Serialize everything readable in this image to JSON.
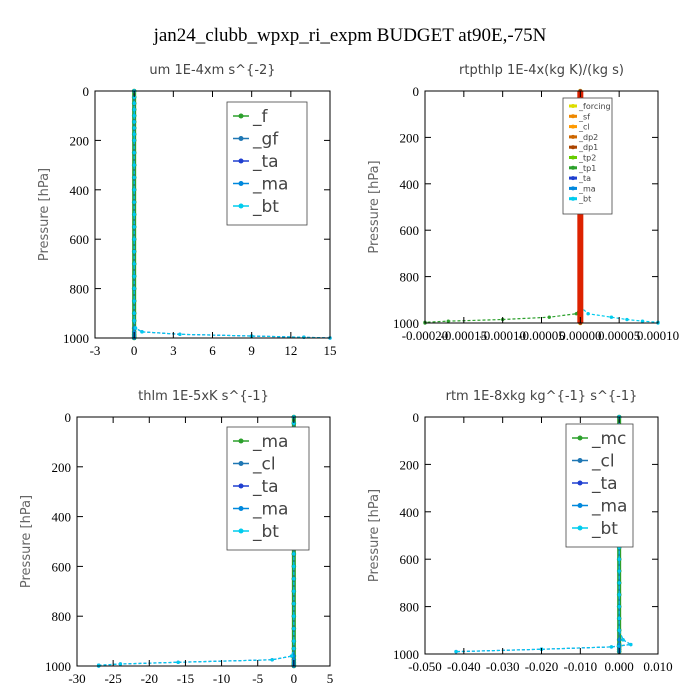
{
  "figure_title": "jan24_clubb_wpxp_ri_expm  BUDGET at90E,-75N",
  "chart_data": [
    {
      "type": "line",
      "title": "um   1E-4xm s^{-2}",
      "ylabel": "Pressure [hPa]",
      "xlim": [
        -3,
        15
      ],
      "ylim": [
        1000,
        0
      ],
      "xticks": [
        "-3",
        "0",
        "3",
        "6",
        "9",
        "12",
        "15"
      ],
      "xtick_values": [
        -3,
        0,
        3,
        6,
        9,
        12,
        15
      ],
      "yticks": [
        "0",
        "200",
        "400",
        "600",
        "800",
        "1000"
      ],
      "ytick_values": [
        0,
        200,
        400,
        600,
        800,
        1000
      ],
      "legend_position": "top-right",
      "legend_size": "large",
      "y": [
        0,
        25,
        50,
        75,
        100,
        125,
        150,
        175,
        200,
        250,
        300,
        350,
        400,
        450,
        500,
        550,
        600,
        650,
        700,
        750,
        800,
        850,
        900,
        930,
        960,
        975,
        985,
        992,
        997,
        1000
      ],
      "series": [
        {
          "name": "_f",
          "color": "#2ca02c",
          "values": [
            0,
            0,
            0,
            0,
            0,
            0,
            0,
            0,
            0,
            0,
            0,
            0,
            0,
            0,
            0,
            0,
            0,
            0,
            0,
            0,
            0,
            0,
            0,
            0,
            0,
            0,
            0,
            0,
            0,
            0
          ]
        },
        {
          "name": "_gf",
          "color": "#1f77b4",
          "values": [
            0,
            0,
            0,
            0,
            0,
            0,
            0,
            0,
            0,
            0,
            0,
            0,
            0,
            0,
            0,
            0,
            0,
            0,
            0,
            0,
            0,
            0,
            0,
            0,
            0,
            0,
            0,
            0,
            0,
            0
          ]
        },
        {
          "name": "_ta",
          "color": "#1f3fd0",
          "values": [
            0,
            0,
            0,
            0,
            0,
            0,
            0,
            0,
            0,
            0,
            0,
            0,
            0,
            0,
            0,
            0,
            0,
            0,
            0,
            0,
            0,
            0,
            0,
            0,
            0.1,
            0.6,
            3.5,
            9,
            13,
            15
          ]
        },
        {
          "name": "_ma",
          "color": "#0088dd",
          "values": [
            0,
            0,
            0,
            0,
            0,
            0,
            0,
            0,
            0,
            0,
            0,
            0,
            0,
            0,
            0,
            0,
            0,
            0,
            0,
            0,
            0,
            0,
            0,
            0,
            0,
            0,
            0,
            0,
            0,
            0
          ]
        },
        {
          "name": "_bt",
          "color": "#00ccee",
          "values": [
            0,
            0,
            0,
            0,
            0,
            0,
            0,
            0,
            0,
            0,
            0,
            0,
            0,
            0,
            0,
            0,
            0,
            0,
            0,
            0,
            0,
            0,
            0,
            0,
            0.1,
            0.6,
            3.5,
            9,
            13,
            15
          ]
        }
      ]
    },
    {
      "type": "line",
      "title": "rtpthlp   1E-4x(kg K)/(kg s)",
      "ylabel": "Pressure [hPa]",
      "xlim": [
        -0.0002,
        0.0001
      ],
      "ylim": [
        1000,
        0
      ],
      "xticks": [
        "-0.00020",
        "-0.00015",
        "-0.00010",
        "-0.00005",
        "0.00000",
        "0.00005",
        "0.00010"
      ],
      "xtick_values": [
        -0.0002,
        -0.00015,
        -0.0001,
        -5e-05,
        0,
        5e-05,
        0.0001
      ],
      "yticks": [
        "0",
        "200",
        "400",
        "600",
        "800",
        "1000"
      ],
      "ytick_values": [
        0,
        200,
        400,
        600,
        800,
        1000
      ],
      "legend_position": "top-right",
      "legend_size": "small",
      "y": [
        0,
        25,
        50,
        75,
        100,
        125,
        150,
        175,
        200,
        250,
        300,
        350,
        400,
        450,
        500,
        550,
        600,
        650,
        700,
        750,
        800,
        850,
        900,
        930,
        960,
        975,
        985,
        992,
        997,
        1000
      ],
      "series": [
        {
          "name": "_forcing",
          "color": "#dddd00",
          "values": [
            0,
            0,
            0,
            0,
            0,
            0,
            0,
            0,
            0,
            0,
            0,
            0,
            0,
            0,
            0,
            0,
            0,
            0,
            0,
            0,
            0,
            0,
            0,
            0,
            0,
            0,
            0,
            0,
            0,
            0
          ]
        },
        {
          "name": "_sf",
          "color": "#ee8800",
          "values": [
            0,
            0,
            0,
            0,
            0,
            0,
            0,
            0,
            0,
            0,
            0,
            0,
            0,
            0,
            0,
            0,
            0,
            0,
            0,
            0,
            0,
            0,
            0,
            0,
            0,
            0,
            0,
            0,
            0,
            0
          ]
        },
        {
          "name": "_cl",
          "color": "#ff9900",
          "values": [
            0,
            0,
            0,
            0,
            0,
            0,
            0,
            0,
            0,
            0,
            0,
            0,
            0,
            0,
            0,
            0,
            0,
            0,
            0,
            0,
            0,
            0,
            0,
            0,
            0,
            0,
            0,
            0,
            0,
            0
          ]
        },
        {
          "name": "_dp2",
          "color": "#cc6600",
          "values": [
            0,
            0,
            0,
            0,
            0,
            0,
            0,
            0,
            0,
            0,
            0,
            0,
            0,
            0,
            0,
            0,
            0,
            0,
            0,
            0,
            0,
            0,
            0,
            0,
            0,
            0,
            0,
            0,
            0,
            0
          ]
        },
        {
          "name": "_dp1",
          "color": "#aa4400",
          "values": [
            0,
            0,
            0,
            0,
            0,
            0,
            0,
            0,
            0,
            0,
            0,
            0,
            0,
            0,
            0,
            0,
            0,
            0,
            0,
            0,
            0,
            0,
            0,
            0,
            0,
            0,
            0,
            0,
            0,
            0
          ]
        },
        {
          "name": "_tp2",
          "color": "#66cc00",
          "values": [
            0,
            0,
            0,
            0,
            0,
            0,
            0,
            0,
            0,
            0,
            0,
            0,
            0,
            0,
            0,
            0,
            0,
            0,
            0,
            0,
            0,
            0,
            0,
            0,
            0,
            0,
            0,
            0,
            0,
            0
          ]
        },
        {
          "name": "_tp1",
          "color": "#2ca02c",
          "values": [
            0,
            0,
            0,
            0,
            0,
            0,
            0,
            0,
            0,
            0,
            0,
            0,
            0,
            0,
            0,
            0,
            0,
            0,
            0,
            0,
            0,
            0,
            0,
            0,
            -5e-06,
            -4e-05,
            -0.0001,
            -0.00017,
            -0.0002,
            -0.0002
          ]
        },
        {
          "name": "_ta",
          "color": "#1f3fd0",
          "values": [
            0,
            0,
            0,
            0,
            0,
            0,
            0,
            0,
            0,
            0,
            0,
            0,
            0,
            0,
            0,
            0,
            0,
            0,
            0,
            0,
            0,
            0,
            0,
            0,
            0,
            0,
            0,
            0,
            0,
            0
          ]
        },
        {
          "name": "_ma",
          "color": "#0088dd",
          "values": [
            0,
            0,
            0,
            0,
            0,
            0,
            0,
            0,
            0,
            0,
            0,
            0,
            0,
            0,
            0,
            0,
            0,
            0,
            0,
            0,
            0,
            0,
            0,
            0,
            0,
            0,
            0,
            0,
            0,
            0
          ]
        },
        {
          "name": "_bt",
          "color": "#00ccee",
          "values": [
            0,
            0,
            0,
            0,
            0,
            0,
            0,
            0,
            0,
            0,
            0,
            0,
            0,
            0,
            0,
            0,
            0,
            0,
            0,
            0,
            0,
            0,
            0,
            0,
            1e-05,
            4e-05,
            6e-05,
            8e-05,
            0.0001,
            0.0001
          ]
        },
        {
          "name": "",
          "color": "#dd2200",
          "values": [
            0,
            0,
            0,
            0,
            0,
            0,
            0,
            0,
            0,
            0,
            0,
            0,
            0,
            0,
            0,
            0,
            0,
            0,
            0,
            0,
            0,
            0,
            0,
            0,
            0,
            0,
            0,
            0,
            0,
            0
          ]
        }
      ]
    },
    {
      "type": "line",
      "title": "thlm   1E-5xK s^{-1}",
      "ylabel": "Pressure [hPa]",
      "xlim": [
        -30,
        5
      ],
      "ylim": [
        1000,
        0
      ],
      "xticks": [
        "-30",
        "-25",
        "-20",
        "-15",
        "-10",
        "-5",
        "0",
        "5"
      ],
      "xtick_values": [
        -30,
        -25,
        -20,
        -15,
        -10,
        -5,
        0,
        5
      ],
      "yticks": [
        "0",
        "200",
        "400",
        "600",
        "800",
        "1000"
      ],
      "ytick_values": [
        0,
        200,
        400,
        600,
        800,
        1000
      ],
      "legend_position": "top-right",
      "legend_size": "large",
      "y": [
        0,
        25,
        50,
        75,
        100,
        125,
        150,
        175,
        200,
        250,
        300,
        350,
        400,
        450,
        500,
        550,
        600,
        650,
        700,
        750,
        800,
        850,
        900,
        930,
        960,
        975,
        985,
        992,
        997,
        1000
      ],
      "series": [
        {
          "name": "_ma",
          "color": "#2ca02c",
          "values": [
            0,
            0,
            0,
            0,
            0,
            0,
            0,
            0,
            0,
            0,
            0,
            0,
            0,
            0,
            0,
            0,
            0,
            0,
            0,
            0,
            0,
            0,
            0,
            0,
            0,
            0,
            0,
            0,
            0,
            0
          ]
        },
        {
          "name": "_cl",
          "color": "#1f77b4",
          "values": [
            0,
            0,
            0,
            0,
            0,
            0,
            0,
            0,
            0,
            0,
            0,
            0,
            0,
            0,
            0,
            0,
            0,
            0,
            0,
            0,
            0,
            0,
            0,
            0,
            0,
            0,
            0,
            0,
            0,
            0
          ]
        },
        {
          "name": "_ta",
          "color": "#1f3fd0",
          "values": [
            0,
            0,
            0,
            0,
            0,
            0,
            0,
            0,
            0,
            0,
            0,
            0,
            0,
            0,
            0,
            0,
            0,
            0,
            0,
            0,
            0,
            0,
            0,
            0,
            -0.3,
            -3,
            -16,
            -24,
            -27,
            -27
          ]
        },
        {
          "name": "_ma",
          "color": "#0088dd",
          "values": [
            0,
            0,
            0,
            0,
            0,
            0,
            0,
            0,
            0,
            0,
            0,
            0,
            0,
            0,
            0,
            0,
            0,
            0,
            0,
            0,
            0,
            0,
            0,
            0,
            0,
            0,
            0,
            0,
            0,
            0
          ]
        },
        {
          "name": "_bt",
          "color": "#00ccee",
          "values": [
            0,
            0,
            0,
            0,
            0,
            0,
            0,
            0,
            0,
            0,
            0,
            0,
            0,
            0,
            0,
            0,
            0,
            0,
            0,
            0,
            0,
            0,
            0,
            0,
            -0.3,
            -3,
            -16,
            -24,
            -27,
            -27
          ]
        }
      ]
    },
    {
      "type": "line",
      "title": "rtm   1E-8xkg kg^{-1} s^{-1}",
      "ylabel": "Pressure [hPa]",
      "xlim": [
        -0.05,
        0.01
      ],
      "ylim": [
        1000,
        0
      ],
      "xticks": [
        "-0.050",
        "-0.040",
        "-0.030",
        "-0.020",
        "-0.010",
        "0.000",
        "0.010"
      ],
      "xtick_values": [
        -0.05,
        -0.04,
        -0.03,
        -0.02,
        -0.01,
        0,
        0.01
      ],
      "yticks": [
        "0",
        "200",
        "400",
        "600",
        "800",
        "1000"
      ],
      "ytick_values": [
        0,
        200,
        400,
        600,
        800,
        1000
      ],
      "legend_position": "top-right",
      "legend_size": "large",
      "y": [
        0,
        50,
        100,
        150,
        200,
        250,
        300,
        330,
        360,
        400,
        440,
        470,
        500,
        550,
        600,
        650,
        700,
        750,
        800,
        850,
        900,
        940,
        960,
        970,
        980,
        990
      ],
      "series": [
        {
          "name": "_mc",
          "color": "#2ca02c",
          "values": [
            0,
            0,
            0,
            0,
            0,
            0,
            0,
            0,
            0,
            0,
            0,
            0,
            0,
            0,
            0,
            0,
            0,
            0,
            0,
            0,
            0,
            0,
            0,
            0,
            0,
            0
          ]
        },
        {
          "name": "_cl",
          "color": "#1f77b4",
          "values": [
            0,
            0,
            0,
            0,
            0,
            0,
            0,
            0,
            0,
            0,
            0,
            0,
            0,
            0,
            0,
            0,
            0,
            0,
            0,
            0,
            0,
            0,
            0,
            0,
            0,
            0
          ]
        },
        {
          "name": "_ta",
          "color": "#1f3fd0",
          "values": [
            0,
            0,
            0,
            0,
            0.0002,
            0.0008,
            0.0012,
            0.0011,
            0.0008,
            0.0002,
            -0.0005,
            -0.0004,
            -0.0002,
            0,
            0,
            0,
            0,
            0,
            0,
            0,
            0,
            0.001,
            0.003,
            -0.002,
            -0.02,
            -0.042
          ]
        },
        {
          "name": "_ma",
          "color": "#0088dd",
          "values": [
            0,
            0,
            0,
            0,
            0,
            0,
            0,
            0,
            0,
            0,
            0,
            0,
            0,
            0,
            0,
            0,
            0,
            0,
            0,
            0,
            0,
            0,
            0,
            0,
            0,
            0
          ]
        },
        {
          "name": "_bt",
          "color": "#00ccee",
          "values": [
            0,
            0,
            0,
            0,
            0.0002,
            0.0008,
            0.0012,
            0.0011,
            0.0008,
            0.0002,
            -0.0005,
            -0.0004,
            -0.0002,
            0,
            0,
            0,
            0,
            0,
            0,
            0,
            0,
            0.001,
            0.003,
            -0.002,
            -0.02,
            -0.042
          ]
        }
      ]
    }
  ]
}
